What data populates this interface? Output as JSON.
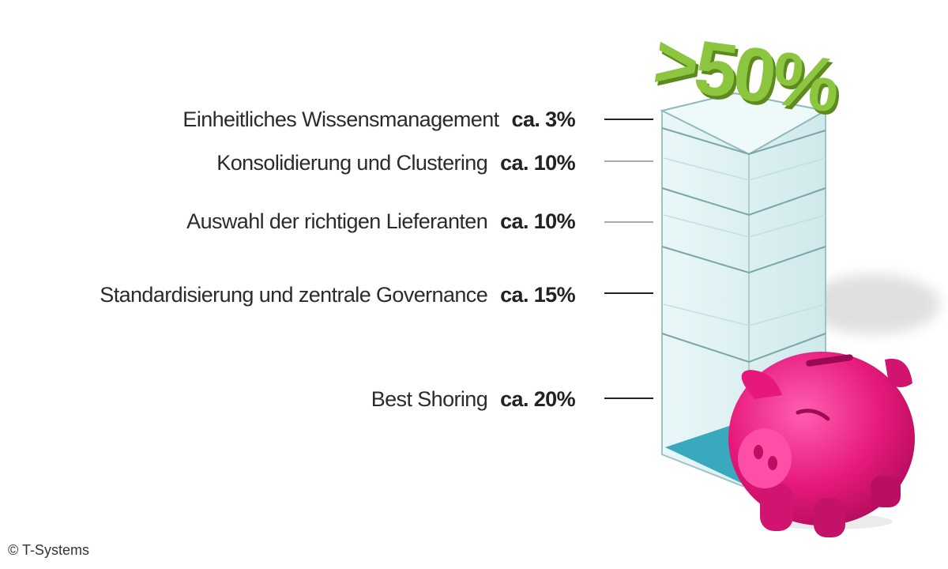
{
  "chart_data": {
    "type": "bar",
    "stacked": true,
    "headline": ">50%",
    "categories": [
      "Einheitliches Wissensmanagement",
      "Konsolidierung und Clustering",
      "Auswahl der richtigen Lieferanten",
      "Standardisierung und zentrale Governance",
      "Best Shoring"
    ],
    "value_labels": [
      "ca. 3%",
      "ca. 10%",
      "ca. 10%",
      "ca. 15%",
      "ca. 20%"
    ],
    "values": [
      3,
      10,
      10,
      15,
      20
    ],
    "unit": "%"
  },
  "colors": {
    "headline_green": "#8cc63f",
    "tower_fill": "#dff2f3",
    "tower_edge": "#8fb9bd",
    "tower_base": "#39a9bd",
    "piggy_pink": "#e6197a",
    "tick_line": "#222222"
  },
  "credit": "© T-Systems",
  "icons": {
    "piggy_bank": "piggy-bank-icon"
  }
}
